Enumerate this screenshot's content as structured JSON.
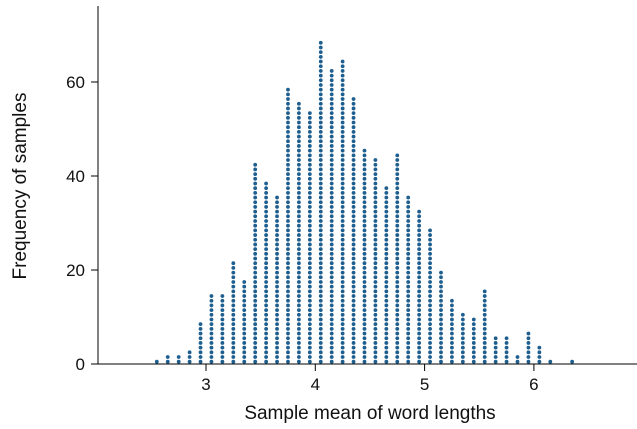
{
  "chart_data": {
    "type": "scatter",
    "subtype": "dot-plot",
    "title": "",
    "xlabel": "Sample mean of word lengths",
    "ylabel": "Frequency of samples",
    "xlim": [
      2.0,
      7.0
    ],
    "ylim": [
      0,
      75
    ],
    "xticks": [
      3,
      4,
      5,
      6
    ],
    "yticks": [
      0,
      20,
      40,
      60
    ],
    "dot_color": "#1f5f8f",
    "grid": false,
    "legend": "none",
    "x": [
      2.55,
      2.65,
      2.75,
      2.85,
      2.95,
      3.05,
      3.15,
      3.25,
      3.35,
      3.45,
      3.55,
      3.65,
      3.75,
      3.85,
      3.95,
      4.05,
      4.15,
      4.25,
      4.35,
      4.45,
      4.55,
      4.65,
      4.75,
      4.85,
      4.95,
      5.05,
      5.15,
      5.25,
      5.35,
      5.45,
      5.55,
      5.65,
      5.75,
      5.85,
      5.95,
      6.05,
      6.15,
      6.25,
      6.35
    ],
    "counts": [
      1,
      2,
      2,
      3,
      9,
      15,
      15,
      22,
      18,
      43,
      39,
      36,
      59,
      56,
      54,
      69,
      63,
      65,
      57,
      46,
      44,
      38,
      45,
      36,
      33,
      29,
      20,
      14,
      11,
      10,
      16,
      6,
      6,
      2,
      7,
      4,
      1,
      0,
      1
    ]
  }
}
